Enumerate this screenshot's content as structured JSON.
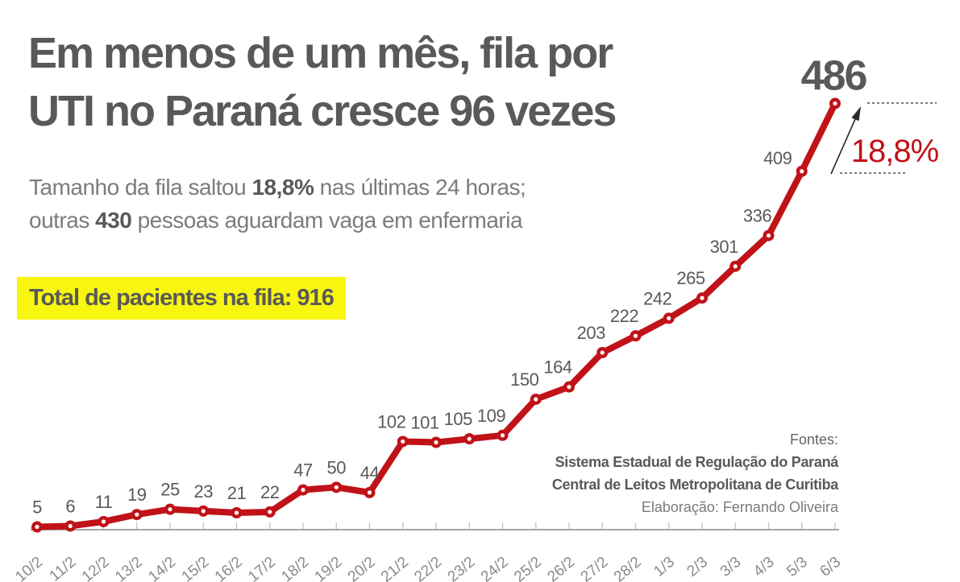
{
  "title": {
    "line1": "Em menos de um mês, fila por",
    "line2": "UTI no Paraná cresce 96 vezes"
  },
  "subtitle": {
    "part1": "Tamanho da fila saltou ",
    "bold1": "18,8%",
    "part2": " nas últimas 24 horas;",
    "part3": "outras ",
    "bold2": "430",
    "part4": " pessoas aguardam vaga em enfermaria"
  },
  "highlight": {
    "label": "Total de pacientes na fila: 916"
  },
  "annotation": {
    "growth_pct": "18,8%"
  },
  "sources": {
    "heading": "Fontes:",
    "line1": "Sistema Estadual de Regulação do Paraná",
    "line2": "Central de Leitos Metropolitana de Curitiba",
    "credit": "Elaboração: Fernando Oliveira"
  },
  "colors": {
    "line_red": "#c01218",
    "accent_red": "#c01218",
    "title_gray": "#595959",
    "label_gray": "#595959",
    "axis_gray": "#a6a6a6",
    "tick_gray": "#c2c2c2",
    "xlabel_gray": "#8a8a8a",
    "annotation_black": "#2b2b2b",
    "highlight_yellow": "#f8f60e"
  },
  "chart_data": {
    "type": "line",
    "title": "Fila por UTI no Paraná",
    "xlabel": "",
    "ylabel": "",
    "ylim": [
      0,
      486
    ],
    "grid": false,
    "legend": false,
    "marker": "donut",
    "categories": [
      "10/2",
      "11/2",
      "12/2",
      "13/2",
      "14/2",
      "15/2",
      "16/2",
      "17/2",
      "18/2",
      "19/2",
      "20/2",
      "21/2",
      "22/2",
      "23/2",
      "24/2",
      "25/2",
      "26/2",
      "27/2",
      "28/2",
      "1/3",
      "2/3",
      "3/3",
      "4/3",
      "5/3",
      "6/3"
    ],
    "values": [
      5,
      6,
      11,
      19,
      25,
      23,
      21,
      22,
      47,
      50,
      44,
      102,
      101,
      105,
      109,
      150,
      164,
      203,
      222,
      242,
      265,
      301,
      336,
      409,
      486
    ]
  }
}
